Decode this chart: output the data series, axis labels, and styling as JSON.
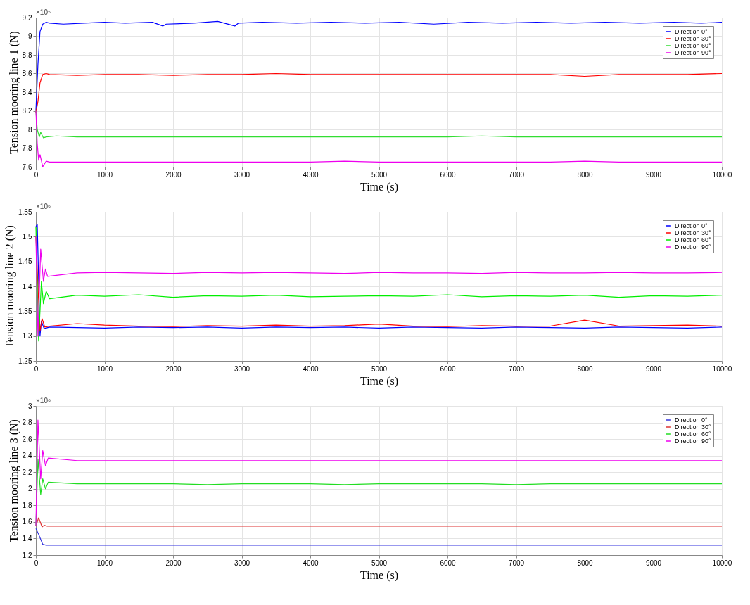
{
  "chart_data": [
    {
      "type": "line",
      "xlabel": "Time (s)",
      "ylabel": "Tension mooring line 1 (N)",
      "annotations": [
        "×10⁵"
      ],
      "xlim": [
        0,
        10000
      ],
      "xticks": [
        0,
        1000,
        2000,
        3000,
        4000,
        5000,
        6000,
        7000,
        8000,
        9000,
        10000
      ],
      "ylim": [
        7.6,
        9.2
      ],
      "yticks": [
        7.6,
        7.8,
        8,
        8.2,
        8.4,
        8.6,
        8.8,
        9,
        9.2
      ],
      "grid": true,
      "legend": "top right",
      "line_style": "solid",
      "series": [
        {
          "name": "Direction 0°",
          "color": "#0000ff",
          "x": [
            0,
            30,
            60,
            100,
            150,
            200,
            400,
            700,
            1000,
            1300,
            1700,
            1850,
            1900,
            2300,
            2650,
            2900,
            2950,
            3300,
            3800,
            4300,
            4800,
            5300,
            5800,
            6300,
            6800,
            7300,
            7800,
            8300,
            8800,
            9300,
            9700,
            10000
          ],
          "values": [
            8.2,
            8.7,
            9.05,
            9.13,
            9.15,
            9.14,
            9.13,
            9.14,
            9.15,
            9.14,
            9.15,
            9.11,
            9.13,
            9.14,
            9.16,
            9.11,
            9.14,
            9.15,
            9.14,
            9.15,
            9.14,
            9.15,
            9.13,
            9.15,
            9.14,
            9.15,
            9.14,
            9.15,
            9.14,
            9.15,
            9.14,
            9.15
          ]
        },
        {
          "name": "Direction 30°",
          "color": "#ff0000",
          "x": [
            0,
            30,
            60,
            100,
            150,
            200,
            600,
            1000,
            1500,
            2000,
            2500,
            3000,
            3500,
            4000,
            4500,
            5000,
            5500,
            6000,
            6500,
            7000,
            7500,
            8000,
            8500,
            9000,
            9500,
            10000
          ],
          "values": [
            8.18,
            8.3,
            8.5,
            8.59,
            8.6,
            8.59,
            8.58,
            8.59,
            8.59,
            8.58,
            8.59,
            8.59,
            8.6,
            8.59,
            8.59,
            8.59,
            8.59,
            8.59,
            8.59,
            8.59,
            8.59,
            8.57,
            8.59,
            8.59,
            8.59,
            8.6
          ]
        },
        {
          "name": "Direction 60°",
          "color": "#33dd33",
          "x": [
            0,
            20,
            50,
            70,
            110,
            150,
            300,
            600,
            1000,
            1500,
            2000,
            2500,
            3000,
            3500,
            4000,
            4500,
            5000,
            5500,
            6000,
            6500,
            7000,
            7500,
            8000,
            8500,
            9000,
            9500,
            10000
          ],
          "values": [
            8.2,
            8.0,
            7.92,
            7.97,
            7.91,
            7.92,
            7.93,
            7.92,
            7.92,
            7.92,
            7.92,
            7.92,
            7.92,
            7.92,
            7.92,
            7.92,
            7.92,
            7.92,
            7.92,
            7.93,
            7.92,
            7.92,
            7.92,
            7.92,
            7.92,
            7.92,
            7.92
          ]
        },
        {
          "name": "Direction 90°",
          "color": "#ee00ee",
          "x": [
            0,
            20,
            40,
            60,
            100,
            150,
            200,
            600,
            1000,
            1500,
            2000,
            2500,
            3000,
            3500,
            4000,
            4500,
            5000,
            5500,
            6000,
            6500,
            7000,
            7500,
            8000,
            8500,
            9000,
            9500,
            10000
          ],
          "values": [
            8.2,
            7.85,
            7.67,
            7.73,
            7.6,
            7.66,
            7.65,
            7.65,
            7.65,
            7.65,
            7.65,
            7.65,
            7.65,
            7.65,
            7.65,
            7.66,
            7.65,
            7.65,
            7.65,
            7.65,
            7.65,
            7.65,
            7.66,
            7.65,
            7.65,
            7.65,
            7.65
          ]
        }
      ]
    },
    {
      "type": "line",
      "xlabel": "Time (s)",
      "ylabel": "Tension mooring line 2 (N)",
      "annotations": [
        "×10⁶"
      ],
      "xlim": [
        0,
        10000
      ],
      "xticks": [
        0,
        1000,
        2000,
        3000,
        4000,
        5000,
        6000,
        7000,
        8000,
        9000,
        10000
      ],
      "ylim": [
        1.25,
        1.55
      ],
      "yticks": [
        1.25,
        1.3,
        1.35,
        1.4,
        1.45,
        1.5,
        1.55
      ],
      "grid": true,
      "legend": "top right",
      "line_style": "solid",
      "series": [
        {
          "name": "Direction 0°",
          "color": "#0000ff",
          "x": [
            0,
            20,
            60,
            80,
            120,
            200,
            600,
            1000,
            1500,
            2000,
            2500,
            3000,
            3500,
            4000,
            4500,
            5000,
            5500,
            6000,
            6500,
            7000,
            7500,
            8000,
            8500,
            9000,
            9500,
            10000
          ],
          "values": [
            1.52,
            1.525,
            1.3,
            1.33,
            1.315,
            1.318,
            1.317,
            1.316,
            1.318,
            1.317,
            1.318,
            1.316,
            1.318,
            1.317,
            1.318,
            1.316,
            1.318,
            1.317,
            1.316,
            1.318,
            1.317,
            1.316,
            1.318,
            1.317,
            1.316,
            1.318
          ]
        },
        {
          "name": "Direction 30°",
          "color": "#ff0000",
          "x": [
            0,
            30,
            60,
            90,
            130,
            200,
            600,
            1000,
            1500,
            2000,
            2500,
            3000,
            3500,
            4000,
            4500,
            5000,
            5500,
            6000,
            6500,
            7000,
            7500,
            8000,
            8500,
            9000,
            9500,
            10000
          ],
          "values": [
            1.5,
            1.4,
            1.31,
            1.335,
            1.318,
            1.32,
            1.325,
            1.322,
            1.32,
            1.319,
            1.321,
            1.32,
            1.322,
            1.32,
            1.321,
            1.324,
            1.32,
            1.319,
            1.321,
            1.32,
            1.32,
            1.332,
            1.32,
            1.321,
            1.322,
            1.32
          ]
        },
        {
          "name": "Direction 60°",
          "color": "#00ee00",
          "x": [
            0,
            40,
            80,
            110,
            150,
            200,
            600,
            1000,
            1500,
            2000,
            2500,
            3000,
            3500,
            4000,
            4500,
            5000,
            5500,
            6000,
            6500,
            7000,
            7500,
            8000,
            8500,
            9000,
            9500,
            10000
          ],
          "values": [
            1.52,
            1.29,
            1.41,
            1.365,
            1.39,
            1.375,
            1.382,
            1.38,
            1.383,
            1.378,
            1.381,
            1.38,
            1.382,
            1.379,
            1.38,
            1.381,
            1.38,
            1.383,
            1.379,
            1.381,
            1.38,
            1.382,
            1.378,
            1.381,
            1.38,
            1.382
          ]
        },
        {
          "name": "Direction 90°",
          "color": "#ee00ee",
          "x": [
            0,
            30,
            70,
            110,
            140,
            170,
            600,
            1000,
            1500,
            2000,
            2500,
            3000,
            3500,
            4000,
            4500,
            5000,
            5500,
            6000,
            6500,
            7000,
            7500,
            8000,
            8500,
            9000,
            9500,
            10000
          ],
          "values": [
            1.5,
            1.3,
            1.475,
            1.41,
            1.435,
            1.42,
            1.427,
            1.428,
            1.427,
            1.426,
            1.428,
            1.427,
            1.428,
            1.427,
            1.426,
            1.428,
            1.427,
            1.427,
            1.426,
            1.428,
            1.427,
            1.427,
            1.428,
            1.427,
            1.427,
            1.428
          ]
        }
      ]
    },
    {
      "type": "line",
      "xlabel": "Time (s)",
      "ylabel": "Tension mooring line 3 (N)",
      "annotations": [
        "×10⁶"
      ],
      "xlim": [
        0,
        10000
      ],
      "xticks": [
        0,
        1000,
        2000,
        3000,
        4000,
        5000,
        6000,
        7000,
        8000,
        9000,
        10000
      ],
      "ylim": [
        1.2,
        3
      ],
      "yticks": [
        1.2,
        1.4,
        1.6,
        1.8,
        2,
        2.2,
        2.4,
        2.6,
        2.8,
        3
      ],
      "grid": true,
      "legend": "top right",
      "line_style": "solid",
      "series": [
        {
          "name": "Direction 0°",
          "color": "#3333dd",
          "x": [
            0,
            40,
            100,
            150,
            200,
            600,
            1000,
            1500,
            2000,
            2500,
            3000,
            3500,
            4000,
            4500,
            5000,
            5500,
            6000,
            6500,
            7000,
            7500,
            8000,
            8500,
            9000,
            9500,
            10000
          ],
          "values": [
            1.52,
            1.45,
            1.33,
            1.32,
            1.32,
            1.32,
            1.32,
            1.32,
            1.32,
            1.32,
            1.32,
            1.32,
            1.32,
            1.32,
            1.32,
            1.32,
            1.32,
            1.32,
            1.32,
            1.32,
            1.32,
            1.32,
            1.32,
            1.32,
            1.32
          ]
        },
        {
          "name": "Direction 30°",
          "color": "#dd3333",
          "x": [
            0,
            40,
            90,
            120,
            160,
            200,
            600,
            1000,
            1500,
            2000,
            2500,
            3000,
            3500,
            4000,
            4500,
            5000,
            5500,
            6000,
            6500,
            7000,
            7500,
            8000,
            8500,
            9000,
            9500,
            10000
          ],
          "values": [
            1.55,
            1.65,
            1.54,
            1.56,
            1.55,
            1.55,
            1.55,
            1.55,
            1.55,
            1.55,
            1.55,
            1.55,
            1.55,
            1.55,
            1.55,
            1.55,
            1.55,
            1.55,
            1.55,
            1.55,
            1.55,
            1.55,
            1.55,
            1.55,
            1.55,
            1.55
          ]
        },
        {
          "name": "Direction 60°",
          "color": "#22dd22",
          "x": [
            0,
            30,
            70,
            100,
            140,
            180,
            600,
            1000,
            1500,
            2000,
            2500,
            3000,
            3500,
            4000,
            4500,
            5000,
            5500,
            6000,
            6500,
            7000,
            7500,
            8000,
            8500,
            9000,
            9500,
            10000
          ],
          "values": [
            1.55,
            2.36,
            1.93,
            2.12,
            2.0,
            2.08,
            2.06,
            2.06,
            2.06,
            2.06,
            2.05,
            2.06,
            2.06,
            2.06,
            2.05,
            2.06,
            2.06,
            2.06,
            2.06,
            2.05,
            2.06,
            2.06,
            2.06,
            2.06,
            2.06,
            2.06
          ]
        },
        {
          "name": "Direction 90°",
          "color": "#ee00ee",
          "x": [
            0,
            30,
            70,
            100,
            140,
            180,
            600,
            1000,
            1500,
            2000,
            2500,
            3000,
            3500,
            4000,
            4500,
            5000,
            5500,
            6000,
            6500,
            7000,
            7500,
            8000,
            8500,
            9000,
            9500,
            10000
          ],
          "values": [
            1.55,
            2.83,
            2.12,
            2.46,
            2.28,
            2.37,
            2.34,
            2.34,
            2.34,
            2.34,
            2.34,
            2.34,
            2.34,
            2.34,
            2.34,
            2.34,
            2.34,
            2.34,
            2.34,
            2.34,
            2.34,
            2.34,
            2.34,
            2.34,
            2.34,
            2.34
          ]
        }
      ]
    }
  ]
}
